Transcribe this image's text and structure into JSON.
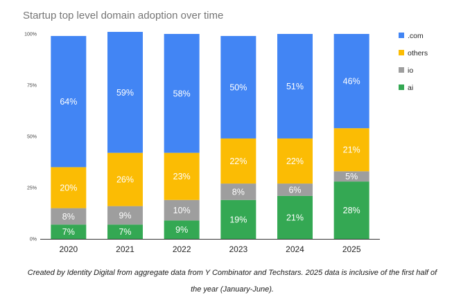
{
  "chart_data": {
    "type": "bar",
    "stacked": true,
    "title": "Startup top level domain adoption over time",
    "categories": [
      "2020",
      "2021",
      "2022",
      "2023",
      "2024",
      "2025"
    ],
    "yticks": [
      "0%",
      "25%",
      "50%",
      "75%",
      "100%"
    ],
    "ylim": [
      0,
      100
    ],
    "series": [
      {
        "name": "ai",
        "color": "#34a853",
        "values": [
          7,
          7,
          9,
          19,
          21,
          28
        ],
        "labels": [
          "7%",
          "7%",
          "9%",
          "19%",
          "21%",
          "28%"
        ]
      },
      {
        "name": "io",
        "color": "#9e9e9e",
        "values": [
          8,
          9,
          10,
          8,
          6,
          5
        ],
        "labels": [
          "8%",
          "9%",
          "10%",
          "8%",
          "6%",
          "5%"
        ]
      },
      {
        "name": "others",
        "color": "#fbbc04",
        "values": [
          20,
          26,
          23,
          22,
          22,
          21
        ],
        "labels": [
          "20%",
          "26%",
          "23%",
          "22%",
          "22%",
          "21%"
        ]
      },
      {
        "name": ".com",
        "color": "#4285f4",
        "values": [
          64,
          59,
          58,
          50,
          51,
          46
        ],
        "labels": [
          "64%",
          "59%",
          "58%",
          "50%",
          "51%",
          "46%"
        ]
      }
    ],
    "legend": {
      "position": "right",
      "order": [
        ".com",
        "others",
        "io",
        "ai"
      ]
    }
  },
  "caption": {
    "line1": "Created by Identity Digital from aggregate data from Y Combinator and Techstars. 2025 data is inclusive of the first half of",
    "line2": "the year (January-June)."
  }
}
